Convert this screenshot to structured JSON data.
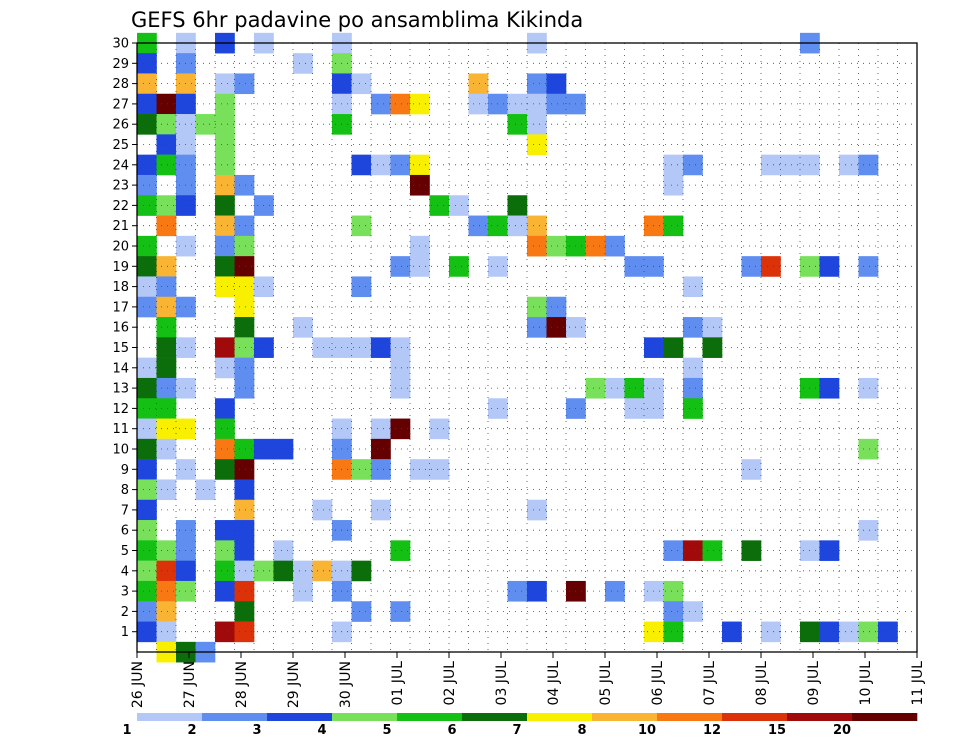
{
  "chart_data": {
    "type": "heatmap",
    "title": "GEFS 6hr padavine po ansamblima Kikinda",
    "x_tick_labels": [
      "26 JUN",
      "27 JUN",
      "28 JUN",
      "29 JUN",
      "30 JUN",
      "01 JUL",
      "02 JUL",
      "03 JUL",
      "04 JUL",
      "05 JUL",
      "06 JUL",
      "07 JUL",
      "08 JUL",
      "09 JUL",
      "10 JUL",
      "11 JUL"
    ],
    "y_tick_labels": [
      "1",
      "2",
      "3",
      "4",
      "5",
      "6",
      "7",
      "8",
      "9",
      "10",
      "11",
      "12",
      "13",
      "14",
      "15",
      "16",
      "17",
      "18",
      "19",
      "20",
      "21",
      "22",
      "23",
      "24",
      "25",
      "26",
      "27",
      "28",
      "29",
      "30"
    ],
    "ylim": [
      0,
      30
    ],
    "x_unit": "6-hour step",
    "n_steps": 60,
    "grid": true,
    "colorbar": {
      "labels": [
        "1",
        "2",
        "3",
        "4",
        "5",
        "6",
        "7",
        "8",
        "10",
        "12",
        "15",
        "20"
      ],
      "colors": [
        "#b4c8f8",
        "#5f8df0",
        "#1e46dc",
        "#78e05a",
        "#14c014",
        "#0b6e0b",
        "#f8f000",
        "#f8b432",
        "#f87814",
        "#dc320a",
        "#a00a0a",
        "#640000"
      ]
    },
    "cells": [
      [
        0,
        30,
        4
      ],
      [
        2,
        30,
        0
      ],
      [
        4,
        30,
        2
      ],
      [
        6,
        30,
        0
      ],
      [
        10,
        30,
        0
      ],
      [
        20,
        30,
        0
      ],
      [
        34,
        30,
        1
      ],
      [
        0,
        29,
        2
      ],
      [
        2,
        29,
        1
      ],
      [
        8,
        29,
        0
      ],
      [
        10,
        29,
        3
      ],
      [
        0,
        28,
        7
      ],
      [
        2,
        28,
        7
      ],
      [
        4,
        28,
        0
      ],
      [
        5,
        28,
        1
      ],
      [
        10,
        28,
        2
      ],
      [
        11,
        28,
        0
      ],
      [
        17,
        28,
        7
      ],
      [
        20,
        28,
        1
      ],
      [
        21,
        28,
        2
      ],
      [
        0,
        27,
        2
      ],
      [
        1,
        27,
        11
      ],
      [
        2,
        27,
        2
      ],
      [
        4,
        27,
        3
      ],
      [
        10,
        27,
        0
      ],
      [
        12,
        27,
        1
      ],
      [
        13,
        27,
        8
      ],
      [
        14,
        27,
        6
      ],
      [
        17,
        27,
        0
      ],
      [
        18,
        27,
        1
      ],
      [
        19,
        27,
        0
      ],
      [
        20,
        27,
        0
      ],
      [
        21,
        27,
        1
      ],
      [
        22,
        27,
        1
      ],
      [
        0,
        26,
        5
      ],
      [
        1,
        26,
        3
      ],
      [
        2,
        26,
        0
      ],
      [
        3,
        26,
        3
      ],
      [
        4,
        26,
        3
      ],
      [
        10,
        26,
        4
      ],
      [
        19,
        26,
        4
      ],
      [
        20,
        26,
        0
      ],
      [
        1,
        25,
        2
      ],
      [
        2,
        25,
        0
      ],
      [
        4,
        25,
        3
      ],
      [
        20,
        25,
        6
      ],
      [
        0,
        24,
        2
      ],
      [
        1,
        24,
        4
      ],
      [
        2,
        24,
        1
      ],
      [
        4,
        24,
        3
      ],
      [
        11,
        24,
        2
      ],
      [
        12,
        24,
        0
      ],
      [
        13,
        24,
        1
      ],
      [
        14,
        24,
        6
      ],
      [
        27,
        24,
        0
      ],
      [
        28,
        24,
        1
      ],
      [
        32,
        24,
        0
      ],
      [
        33,
        24,
        0
      ],
      [
        34,
        24,
        0
      ],
      [
        36,
        24,
        0
      ],
      [
        37,
        24,
        1
      ],
      [
        0,
        23,
        1
      ],
      [
        2,
        23,
        1
      ],
      [
        4,
        23,
        7
      ],
      [
        5,
        23,
        1
      ],
      [
        14,
        23,
        11
      ],
      [
        27,
        23,
        0
      ],
      [
        0,
        22,
        4
      ],
      [
        1,
        22,
        3
      ],
      [
        2,
        22,
        2
      ],
      [
        4,
        22,
        5
      ],
      [
        6,
        22,
        1
      ],
      [
        15,
        22,
        4
      ],
      [
        16,
        22,
        0
      ],
      [
        19,
        22,
        5
      ],
      [
        1,
        21,
        8
      ],
      [
        4,
        21,
        7
      ],
      [
        5,
        21,
        1
      ],
      [
        11,
        21,
        3
      ],
      [
        17,
        21,
        1
      ],
      [
        18,
        21,
        4
      ],
      [
        19,
        21,
        0
      ],
      [
        20,
        21,
        7
      ],
      [
        26,
        21,
        8
      ],
      [
        27,
        21,
        4
      ],
      [
        0,
        20,
        4
      ],
      [
        2,
        20,
        0
      ],
      [
        4,
        20,
        1
      ],
      [
        5,
        20,
        3
      ],
      [
        14,
        20,
        0
      ],
      [
        20,
        20,
        8
      ],
      [
        21,
        20,
        3
      ],
      [
        22,
        20,
        4
      ],
      [
        23,
        20,
        8
      ],
      [
        24,
        20,
        1
      ],
      [
        0,
        19,
        5
      ],
      [
        1,
        19,
        7
      ],
      [
        4,
        19,
        5
      ],
      [
        5,
        19,
        11
      ],
      [
        13,
        19,
        1
      ],
      [
        14,
        19,
        0
      ],
      [
        16,
        19,
        4
      ],
      [
        18,
        19,
        0
      ],
      [
        25,
        19,
        1
      ],
      [
        26,
        19,
        1
      ],
      [
        31,
        19,
        1
      ],
      [
        32,
        19,
        9
      ],
      [
        34,
        19,
        3
      ],
      [
        35,
        19,
        2
      ],
      [
        37,
        19,
        1
      ],
      [
        0,
        18,
        0
      ],
      [
        1,
        18,
        1
      ],
      [
        4,
        18,
        6
      ],
      [
        5,
        18,
        6
      ],
      [
        6,
        18,
        0
      ],
      [
        11,
        18,
        1
      ],
      [
        28,
        18,
        0
      ],
      [
        0,
        17,
        1
      ],
      [
        1,
        17,
        7
      ],
      [
        2,
        17,
        1
      ],
      [
        5,
        17,
        6
      ],
      [
        20,
        17,
        3
      ],
      [
        21,
        17,
        1
      ],
      [
        1,
        16,
        4
      ],
      [
        5,
        16,
        5
      ],
      [
        8,
        16,
        0
      ],
      [
        20,
        16,
        1
      ],
      [
        21,
        16,
        11
      ],
      [
        22,
        16,
        0
      ],
      [
        28,
        16,
        1
      ],
      [
        29,
        16,
        0
      ],
      [
        1,
        15,
        5
      ],
      [
        2,
        15,
        0
      ],
      [
        4,
        15,
        10
      ],
      [
        5,
        15,
        3
      ],
      [
        6,
        15,
        2
      ],
      [
        9,
        15,
        0
      ],
      [
        10,
        15,
        0
      ],
      [
        11,
        15,
        0
      ],
      [
        12,
        15,
        2
      ],
      [
        13,
        15,
        0
      ],
      [
        26,
        15,
        2
      ],
      [
        27,
        15,
        5
      ],
      [
        29,
        15,
        5
      ],
      [
        0,
        14,
        0
      ],
      [
        1,
        14,
        5
      ],
      [
        4,
        14,
        0
      ],
      [
        5,
        14,
        1
      ],
      [
        13,
        14,
        0
      ],
      [
        28,
        14,
        0
      ],
      [
        0,
        13,
        5
      ],
      [
        1,
        13,
        1
      ],
      [
        2,
        13,
        0
      ],
      [
        5,
        13,
        1
      ],
      [
        13,
        13,
        0
      ],
      [
        23,
        13,
        3
      ],
      [
        24,
        13,
        0
      ],
      [
        25,
        13,
        4
      ],
      [
        26,
        13,
        0
      ],
      [
        28,
        13,
        1
      ],
      [
        34,
        13,
        4
      ],
      [
        35,
        13,
        2
      ],
      [
        37,
        13,
        0
      ],
      [
        0,
        12,
        4
      ],
      [
        1,
        12,
        4
      ],
      [
        4,
        12,
        2
      ],
      [
        18,
        12,
        0
      ],
      [
        22,
        12,
        1
      ],
      [
        25,
        12,
        0
      ],
      [
        26,
        12,
        0
      ],
      [
        28,
        12,
        4
      ],
      [
        0,
        11,
        0
      ],
      [
        1,
        11,
        6
      ],
      [
        2,
        11,
        6
      ],
      [
        4,
        11,
        4
      ],
      [
        10,
        11,
        0
      ],
      [
        12,
        11,
        0
      ],
      [
        13,
        11,
        11
      ],
      [
        15,
        11,
        0
      ],
      [
        0,
        10,
        5
      ],
      [
        1,
        10,
        0
      ],
      [
        4,
        10,
        8
      ],
      [
        5,
        10,
        4
      ],
      [
        6,
        10,
        2
      ],
      [
        7,
        10,
        2
      ],
      [
        10,
        10,
        1
      ],
      [
        12,
        10,
        11
      ],
      [
        37,
        10,
        3
      ],
      [
        0,
        9,
        2
      ],
      [
        2,
        9,
        0
      ],
      [
        4,
        9,
        5
      ],
      [
        5,
        9,
        11
      ],
      [
        10,
        9,
        8
      ],
      [
        11,
        9,
        3
      ],
      [
        12,
        9,
        1
      ],
      [
        14,
        9,
        0
      ],
      [
        15,
        9,
        0
      ],
      [
        31,
        9,
        0
      ],
      [
        0,
        8,
        3
      ],
      [
        1,
        8,
        0
      ],
      [
        3,
        8,
        0
      ],
      [
        5,
        8,
        2
      ],
      [
        0,
        7,
        2
      ],
      [
        5,
        7,
        7
      ],
      [
        9,
        7,
        0
      ],
      [
        12,
        7,
        0
      ],
      [
        20,
        7,
        0
      ],
      [
        0,
        6,
        3
      ],
      [
        2,
        6,
        1
      ],
      [
        4,
        6,
        2
      ],
      [
        5,
        6,
        2
      ],
      [
        10,
        6,
        1
      ],
      [
        37,
        6,
        0
      ],
      [
        0,
        5,
        4
      ],
      [
        1,
        5,
        3
      ],
      [
        2,
        5,
        1
      ],
      [
        4,
        5,
        3
      ],
      [
        5,
        5,
        2
      ],
      [
        7,
        5,
        0
      ],
      [
        13,
        5,
        4
      ],
      [
        27,
        5,
        1
      ],
      [
        28,
        5,
        10
      ],
      [
        29,
        5,
        4
      ],
      [
        31,
        5,
        5
      ],
      [
        34,
        5,
        0
      ],
      [
        35,
        5,
        2
      ],
      [
        0,
        4,
        3
      ],
      [
        1,
        4,
        9
      ],
      [
        2,
        4,
        2
      ],
      [
        4,
        4,
        4
      ],
      [
        5,
        4,
        0
      ],
      [
        6,
        4,
        3
      ],
      [
        7,
        4,
        5
      ],
      [
        8,
        4,
        0
      ],
      [
        9,
        4,
        7
      ],
      [
        10,
        4,
        0
      ],
      [
        11,
        4,
        5
      ],
      [
        0,
        3,
        4
      ],
      [
        1,
        3,
        8
      ],
      [
        2,
        3,
        3
      ],
      [
        4,
        3,
        2
      ],
      [
        5,
        3,
        9
      ],
      [
        8,
        3,
        0
      ],
      [
        10,
        3,
        1
      ],
      [
        19,
        3,
        1
      ],
      [
        20,
        3,
        2
      ],
      [
        22,
        3,
        11
      ],
      [
        24,
        3,
        1
      ],
      [
        26,
        3,
        0
      ],
      [
        27,
        3,
        3
      ],
      [
        0,
        2,
        1
      ],
      [
        1,
        2,
        7
      ],
      [
        5,
        2,
        5
      ],
      [
        11,
        2,
        1
      ],
      [
        13,
        2,
        1
      ],
      [
        27,
        2,
        1
      ],
      [
        28,
        2,
        0
      ],
      [
        0,
        1,
        2
      ],
      [
        1,
        1,
        0
      ],
      [
        4,
        1,
        10
      ],
      [
        5,
        1,
        9
      ],
      [
        10,
        1,
        0
      ],
      [
        26,
        1,
        6
      ],
      [
        27,
        1,
        4
      ],
      [
        30,
        1,
        2
      ],
      [
        32,
        1,
        0
      ],
      [
        34,
        1,
        5
      ],
      [
        35,
        1,
        2
      ],
      [
        36,
        1,
        0
      ],
      [
        37,
        1,
        3
      ],
      [
        38,
        1,
        2
      ],
      [
        1,
        0,
        6
      ],
      [
        2,
        0,
        5
      ],
      [
        3,
        0,
        1
      ]
    ]
  }
}
